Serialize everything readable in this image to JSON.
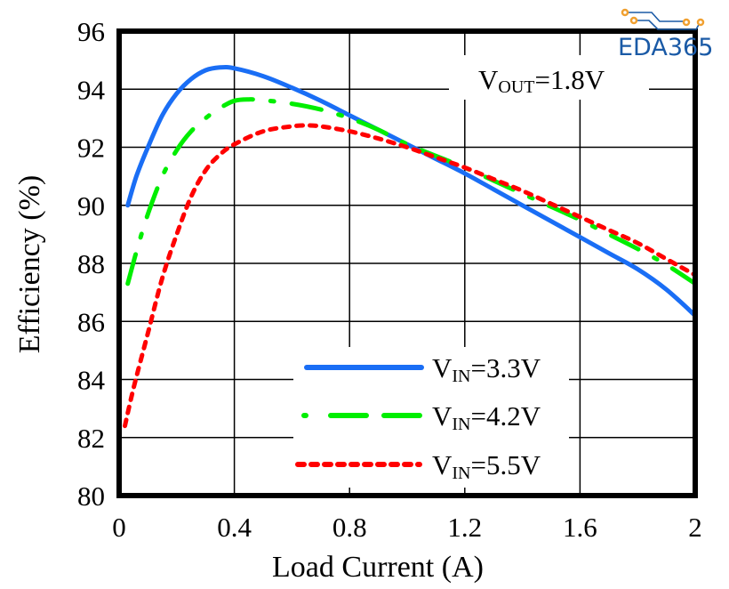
{
  "chart_data": {
    "type": "line",
    "title": "",
    "xlabel": "Load Current (A)",
    "ylabel": "Efficiency (%)",
    "xlim": [
      0,
      2
    ],
    "ylim": [
      80,
      96
    ],
    "xticks": [
      0,
      0.4,
      0.8,
      1.2,
      1.6,
      2
    ],
    "xtick_labels": [
      "0",
      "0.4",
      "0.8",
      "1.2",
      "1.6",
      "2"
    ],
    "yticks": [
      80,
      82,
      84,
      86,
      88,
      90,
      92,
      94,
      96
    ],
    "ytick_labels": [
      "80",
      "82",
      "84",
      "86",
      "88",
      "90",
      "92",
      "94",
      "96"
    ],
    "grid": true,
    "annotation": {
      "main": "V",
      "sub": "OUT",
      "rest": "=1.8V"
    },
    "legend_position": "bottom-center",
    "series": [
      {
        "name": "VIN=3.3V",
        "label_main": "V",
        "label_sub": "IN",
        "label_rest": "=3.3V",
        "color": "#1a6ef5",
        "style": "solid",
        "x": [
          0.03,
          0.06,
          0.1,
          0.15,
          0.2,
          0.25,
          0.3,
          0.35,
          0.4,
          0.5,
          0.6,
          0.7,
          0.8,
          0.9,
          1.0,
          1.1,
          1.2,
          1.3,
          1.4,
          1.5,
          1.6,
          1.7,
          1.8,
          1.9,
          2.0
        ],
        "y": [
          90.0,
          91.0,
          92.0,
          93.1,
          93.85,
          94.35,
          94.65,
          94.75,
          94.72,
          94.45,
          94.05,
          93.6,
          93.1,
          92.6,
          92.1,
          91.6,
          91.1,
          90.55,
          90.0,
          89.45,
          88.9,
          88.35,
          87.8,
          87.1,
          86.2
        ]
      },
      {
        "name": "VIN=4.2V",
        "label_main": "V",
        "label_sub": "IN",
        "label_rest": "=4.2V",
        "color": "#00ee00",
        "style": "dash-dot",
        "x": [
          0.03,
          0.06,
          0.1,
          0.15,
          0.2,
          0.25,
          0.3,
          0.35,
          0.4,
          0.45,
          0.5,
          0.6,
          0.7,
          0.8,
          0.9,
          1.0,
          1.1,
          1.2,
          1.3,
          1.4,
          1.5,
          1.6,
          1.7,
          1.8,
          1.9,
          2.0
        ],
        "y": [
          87.3,
          88.4,
          89.7,
          91.0,
          91.9,
          92.55,
          93.0,
          93.35,
          93.6,
          93.65,
          93.62,
          93.5,
          93.3,
          93.0,
          92.6,
          92.1,
          91.7,
          91.3,
          90.85,
          90.4,
          89.95,
          89.5,
          89.0,
          88.5,
          87.95,
          87.3
        ]
      },
      {
        "name": "VIN=5.5V",
        "label_main": "V",
        "label_sub": "IN",
        "label_rest": "=5.5V",
        "color": "#ff0000",
        "style": "dotted",
        "x": [
          0.02,
          0.05,
          0.1,
          0.15,
          0.2,
          0.25,
          0.3,
          0.35,
          0.4,
          0.5,
          0.6,
          0.65,
          0.7,
          0.8,
          0.9,
          1.0,
          1.1,
          1.2,
          1.3,
          1.4,
          1.5,
          1.6,
          1.7,
          1.8,
          1.9,
          2.0
        ],
        "y": [
          82.4,
          83.7,
          85.6,
          87.5,
          89.0,
          90.3,
          91.2,
          91.75,
          92.1,
          92.55,
          92.72,
          92.75,
          92.72,
          92.55,
          92.3,
          92.0,
          91.65,
          91.3,
          90.9,
          90.5,
          90.05,
          89.6,
          89.15,
          88.7,
          88.15,
          87.6
        ]
      }
    ]
  },
  "watermark": {
    "text": "EDA365"
  }
}
